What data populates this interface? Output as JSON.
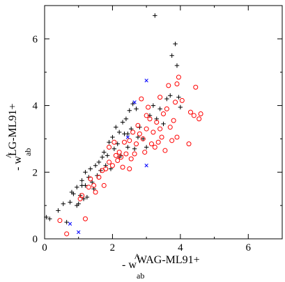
{
  "chart_data": {
    "type": "scatter",
    "title": "",
    "xlabel": {
      "prefix": "- ",
      "hat": "^",
      "symbol": "w",
      "subscript": "ab",
      "name": "WAG-ML91+"
    },
    "ylabel": {
      "prefix": "- ",
      "hat": "^",
      "symbol": "w",
      "subscript": "ab",
      "name": "LG-ML91+"
    },
    "xlim": [
      0,
      7
    ],
    "ylim": [
      0,
      7
    ],
    "xticks": [
      0,
      2,
      4,
      6
    ],
    "yticks": [
      0,
      2,
      4,
      6
    ],
    "tick_labels": [
      "0",
      "2",
      "4",
      "6"
    ],
    "grid": false,
    "colors": {
      "plus": "#000000",
      "circle": "#ff0000",
      "cross": "#0000ff"
    },
    "series": [
      {
        "marker": "plus",
        "points": [
          [
            0.05,
            0.65
          ],
          [
            0.15,
            0.6
          ],
          [
            0.4,
            0.85
          ],
          [
            0.55,
            1.05
          ],
          [
            0.65,
            0.5
          ],
          [
            0.75,
            1.1
          ],
          [
            0.8,
            1.4
          ],
          [
            0.85,
            1.35
          ],
          [
            0.95,
            1.55
          ],
          [
            1.0,
            1.05
          ],
          [
            1.05,
            1.3
          ],
          [
            1.1,
            1.6
          ],
          [
            1.1,
            1.75
          ],
          [
            1.15,
            1.2
          ],
          [
            1.2,
            2.0
          ],
          [
            1.25,
            1.25
          ],
          [
            1.3,
            1.85
          ],
          [
            1.35,
            2.1
          ],
          [
            1.4,
            1.7
          ],
          [
            1.45,
            1.5
          ],
          [
            1.5,
            2.2
          ],
          [
            1.55,
            1.9
          ],
          [
            1.6,
            2.3
          ],
          [
            1.65,
            2.05
          ],
          [
            1.7,
            2.45
          ],
          [
            1.75,
            2.6
          ],
          [
            1.8,
            2.2
          ],
          [
            1.85,
            2.5
          ],
          [
            1.9,
            2.9
          ],
          [
            1.95,
            2.1
          ],
          [
            2.0,
            3.05
          ],
          [
            2.05,
            2.7
          ],
          [
            2.1,
            3.35
          ],
          [
            2.15,
            2.85
          ],
          [
            2.2,
            3.2
          ],
          [
            2.25,
            2.5
          ],
          [
            2.3,
            3.5
          ],
          [
            2.35,
            3.15
          ],
          [
            2.4,
            3.6
          ],
          [
            2.45,
            2.75
          ],
          [
            2.5,
            3.85
          ],
          [
            2.55,
            3.3
          ],
          [
            2.6,
            4.05
          ],
          [
            2.65,
            2.7
          ],
          [
            2.7,
            3.9
          ],
          [
            2.75,
            3.05
          ],
          [
            2.8,
            3.35
          ],
          [
            2.9,
            3.0
          ],
          [
            3.0,
            2.75
          ],
          [
            3.1,
            3.7
          ],
          [
            3.2,
            4.0
          ],
          [
            3.25,
            6.7
          ],
          [
            3.3,
            3.6
          ],
          [
            3.4,
            3.9
          ],
          [
            3.5,
            3.45
          ],
          [
            3.6,
            4.2
          ],
          [
            3.7,
            4.3
          ],
          [
            3.75,
            5.5
          ],
          [
            3.85,
            5.85
          ],
          [
            3.9,
            5.2
          ],
          [
            3.95,
            4.25
          ],
          [
            4.0,
            3.95
          ],
          [
            2.2,
            2.45
          ],
          [
            1.2,
            1.6
          ],
          [
            2.45,
            3.15
          ],
          [
            0.95,
            1.0
          ]
        ]
      },
      {
        "marker": "circle",
        "points": [
          [
            0.45,
            0.55
          ],
          [
            0.65,
            0.15
          ],
          [
            1.1,
            1.3
          ],
          [
            1.2,
            0.6
          ],
          [
            1.3,
            1.55
          ],
          [
            1.35,
            1.8
          ],
          [
            1.45,
            1.6
          ],
          [
            1.5,
            1.4
          ],
          [
            1.6,
            1.85
          ],
          [
            1.7,
            2.05
          ],
          [
            1.75,
            1.6
          ],
          [
            1.8,
            2.1
          ],
          [
            1.9,
            2.3
          ],
          [
            1.9,
            2.75
          ],
          [
            2.0,
            2.2
          ],
          [
            2.05,
            2.9
          ],
          [
            2.1,
            2.5
          ],
          [
            2.15,
            2.35
          ],
          [
            2.2,
            2.6
          ],
          [
            2.25,
            2.45
          ],
          [
            2.3,
            2.15
          ],
          [
            2.35,
            2.9
          ],
          [
            2.4,
            2.55
          ],
          [
            2.5,
            2.95
          ],
          [
            2.55,
            2.4
          ],
          [
            2.6,
            3.2
          ],
          [
            2.65,
            2.55
          ],
          [
            2.7,
            2.85
          ],
          [
            2.75,
            3.4
          ],
          [
            2.8,
            3.15
          ],
          [
            2.85,
            4.2
          ],
          [
            2.9,
            3.0
          ],
          [
            2.95,
            2.6
          ],
          [
            3.0,
            3.3
          ],
          [
            3.05,
            3.95
          ],
          [
            3.1,
            3.6
          ],
          [
            3.15,
            2.85
          ],
          [
            3.2,
            3.2
          ],
          [
            3.25,
            2.75
          ],
          [
            3.3,
            3.5
          ],
          [
            3.35,
            2.9
          ],
          [
            3.4,
            4.25
          ],
          [
            3.45,
            3.05
          ],
          [
            3.5,
            3.75
          ],
          [
            3.55,
            2.65
          ],
          [
            3.6,
            3.9
          ],
          [
            3.65,
            4.6
          ],
          [
            3.7,
            3.35
          ],
          [
            3.75,
            2.95
          ],
          [
            3.8,
            3.55
          ],
          [
            3.85,
            4.1
          ],
          [
            3.9,
            4.65
          ],
          [
            3.95,
            4.85
          ],
          [
            3.9,
            3.05
          ],
          [
            4.05,
            4.15
          ],
          [
            4.25,
            2.85
          ],
          [
            4.3,
            3.8
          ],
          [
            4.4,
            3.7
          ],
          [
            4.45,
            4.55
          ],
          [
            4.55,
            3.6
          ],
          [
            4.6,
            3.75
          ],
          [
            3.0,
            3.7
          ],
          [
            1.05,
            1.2
          ],
          [
            2.5,
            2.1
          ],
          [
            3.4,
            3.3
          ]
        ]
      },
      {
        "marker": "cross",
        "points": [
          [
            0.75,
            0.45
          ],
          [
            1.0,
            0.2
          ],
          [
            2.65,
            4.1
          ],
          [
            3.0,
            4.75
          ],
          [
            3.0,
            2.2
          ],
          [
            2.45,
            3.05
          ]
        ]
      }
    ]
  }
}
